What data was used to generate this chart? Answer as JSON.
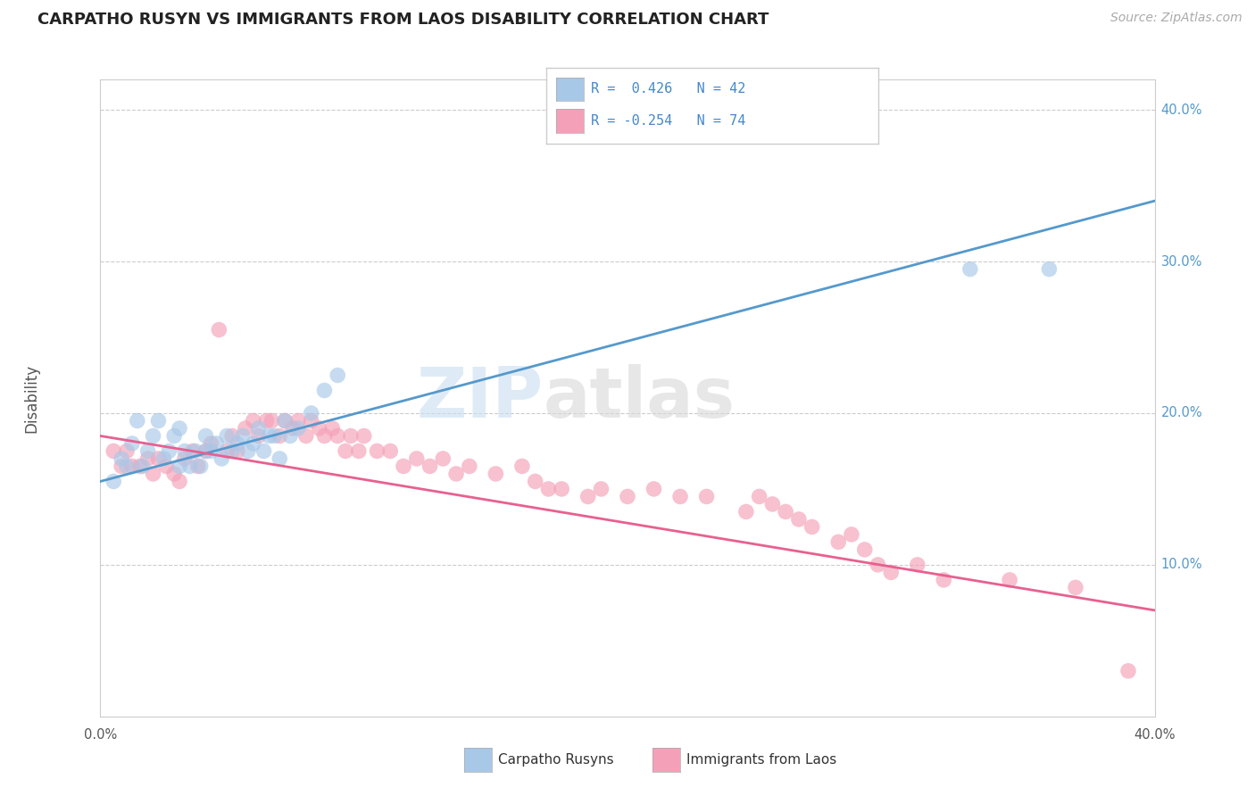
{
  "title": "CARPATHO RUSYN VS IMMIGRANTS FROM LAOS DISABILITY CORRELATION CHART",
  "source": "Source: ZipAtlas.com",
  "ylabel": "Disability",
  "xlim": [
    0.0,
    0.4
  ],
  "ylim": [
    0.0,
    0.42
  ],
  "yticks": [
    0.1,
    0.2,
    0.3,
    0.4
  ],
  "ytick_labels": [
    "10.0%",
    "20.0%",
    "30.0%",
    "40.0%"
  ],
  "xtick_left_label": "0.0%",
  "xtick_right_label": "40.0%",
  "blue_color": "#a8c8e8",
  "pink_color": "#f4a0b8",
  "blue_line_color": "#5599cc",
  "pink_line_color": "#e86090",
  "grid_color": "#cccccc",
  "blue_scatter_x": [
    0.005,
    0.008,
    0.01,
    0.012,
    0.014,
    0.016,
    0.018,
    0.02,
    0.022,
    0.024,
    0.026,
    0.028,
    0.03,
    0.03,
    0.032,
    0.034,
    0.036,
    0.038,
    0.04,
    0.04,
    0.042,
    0.044,
    0.046,
    0.048,
    0.05,
    0.052,
    0.054,
    0.056,
    0.058,
    0.06,
    0.062,
    0.064,
    0.066,
    0.068,
    0.07,
    0.072,
    0.075,
    0.08,
    0.085,
    0.09,
    0.33,
    0.36
  ],
  "blue_scatter_y": [
    0.155,
    0.17,
    0.165,
    0.18,
    0.195,
    0.165,
    0.175,
    0.185,
    0.195,
    0.17,
    0.175,
    0.185,
    0.165,
    0.19,
    0.175,
    0.165,
    0.175,
    0.165,
    0.175,
    0.185,
    0.175,
    0.18,
    0.17,
    0.185,
    0.175,
    0.18,
    0.185,
    0.175,
    0.18,
    0.19,
    0.175,
    0.185,
    0.185,
    0.17,
    0.195,
    0.185,
    0.19,
    0.2,
    0.215,
    0.225,
    0.295,
    0.295
  ],
  "pink_scatter_x": [
    0.005,
    0.008,
    0.01,
    0.012,
    0.015,
    0.018,
    0.02,
    0.022,
    0.025,
    0.028,
    0.03,
    0.032,
    0.035,
    0.037,
    0.04,
    0.042,
    0.045,
    0.048,
    0.05,
    0.052,
    0.055,
    0.058,
    0.06,
    0.063,
    0.065,
    0.068,
    0.07,
    0.073,
    0.075,
    0.078,
    0.08,
    0.083,
    0.085,
    0.088,
    0.09,
    0.093,
    0.095,
    0.098,
    0.1,
    0.105,
    0.11,
    0.115,
    0.12,
    0.125,
    0.13,
    0.135,
    0.14,
    0.15,
    0.16,
    0.165,
    0.17,
    0.175,
    0.185,
    0.19,
    0.2,
    0.21,
    0.22,
    0.23,
    0.245,
    0.25,
    0.255,
    0.26,
    0.265,
    0.27,
    0.28,
    0.285,
    0.29,
    0.295,
    0.3,
    0.31,
    0.32,
    0.345,
    0.37,
    0.39
  ],
  "pink_scatter_y": [
    0.175,
    0.165,
    0.175,
    0.165,
    0.165,
    0.17,
    0.16,
    0.17,
    0.165,
    0.16,
    0.155,
    0.17,
    0.175,
    0.165,
    0.175,
    0.18,
    0.255,
    0.175,
    0.185,
    0.175,
    0.19,
    0.195,
    0.185,
    0.195,
    0.195,
    0.185,
    0.195,
    0.19,
    0.195,
    0.185,
    0.195,
    0.19,
    0.185,
    0.19,
    0.185,
    0.175,
    0.185,
    0.175,
    0.185,
    0.175,
    0.175,
    0.165,
    0.17,
    0.165,
    0.17,
    0.16,
    0.165,
    0.16,
    0.165,
    0.155,
    0.15,
    0.15,
    0.145,
    0.15,
    0.145,
    0.15,
    0.145,
    0.145,
    0.135,
    0.145,
    0.14,
    0.135,
    0.13,
    0.125,
    0.115,
    0.12,
    0.11,
    0.1,
    0.095,
    0.1,
    0.09,
    0.09,
    0.085,
    0.03
  ],
  "blue_trend_x0": 0.0,
  "blue_trend_x1": 0.4,
  "blue_trend_y0": 0.155,
  "blue_trend_y1": 0.34,
  "pink_trend_x0": 0.0,
  "pink_trend_x1": 0.4,
  "pink_trend_y0": 0.185,
  "pink_trend_y1": 0.07
}
